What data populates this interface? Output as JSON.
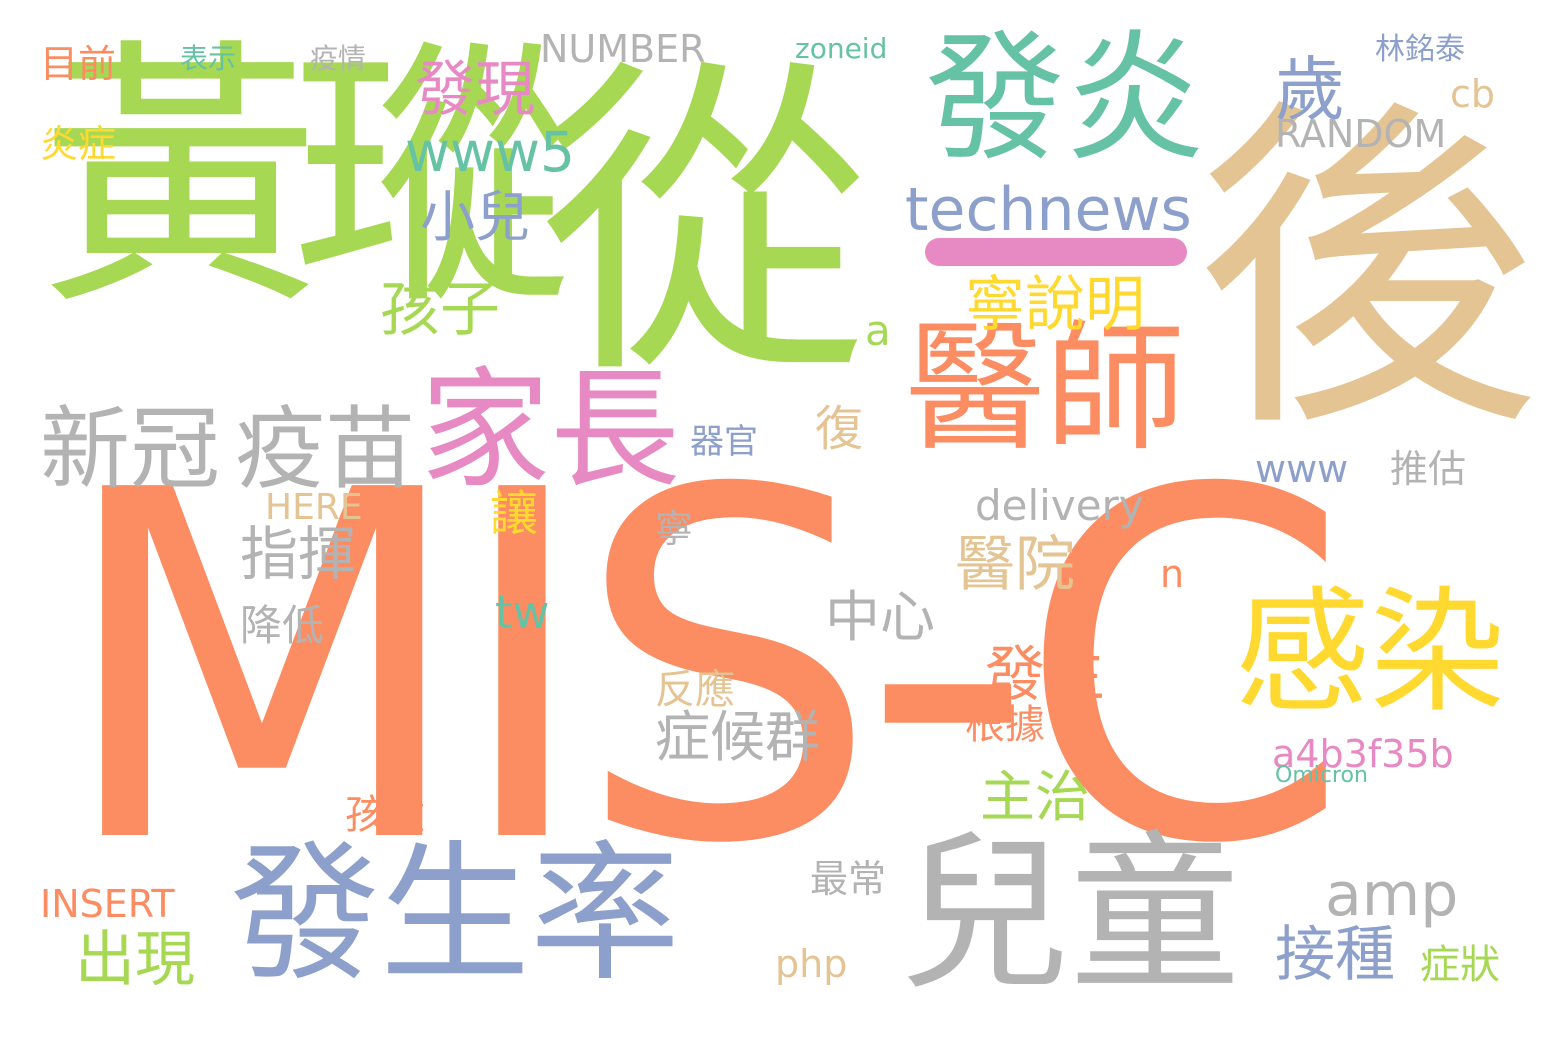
{
  "palette": {
    "orange": "#fc8d62",
    "green": "#a6d854",
    "teal": "#66c2a5",
    "tan": "#e5c494",
    "blue": "#8da0cb",
    "pink": "#e78ac3",
    "yellow": "#ffd92f",
    "gray": "#b3b3b3"
  },
  "words": [
    "MIS-C",
    "黃瑽",
    "從",
    "後",
    "發炎",
    "醫師",
    "兒童",
    "發生率",
    "感染",
    "家長",
    "新冠",
    "疫苗",
    "technews",
    "發現",
    "歲",
    "小兒",
    "孩子",
    "www5",
    "寧說明",
    "amp",
    "醫院",
    "發生",
    "主治",
    "中心",
    "症候群",
    "接種",
    "出現",
    "指揮",
    "a4b3f35b",
    "www",
    "推估",
    "delivery",
    "RANDOM",
    "NUMBER",
    "zoneid",
    "林銘泰",
    "目前",
    "炎症",
    "表示",
    "疫情",
    "cb",
    "Omicron",
    "INSERT",
    "HERE",
    "tw",
    "php",
    "症狀",
    "反應",
    "降低",
    "讓",
    "孩童",
    "最常",
    "根據",
    "器官",
    "復",
    "寧",
    "n",
    "a",
    "一"
  ]
}
